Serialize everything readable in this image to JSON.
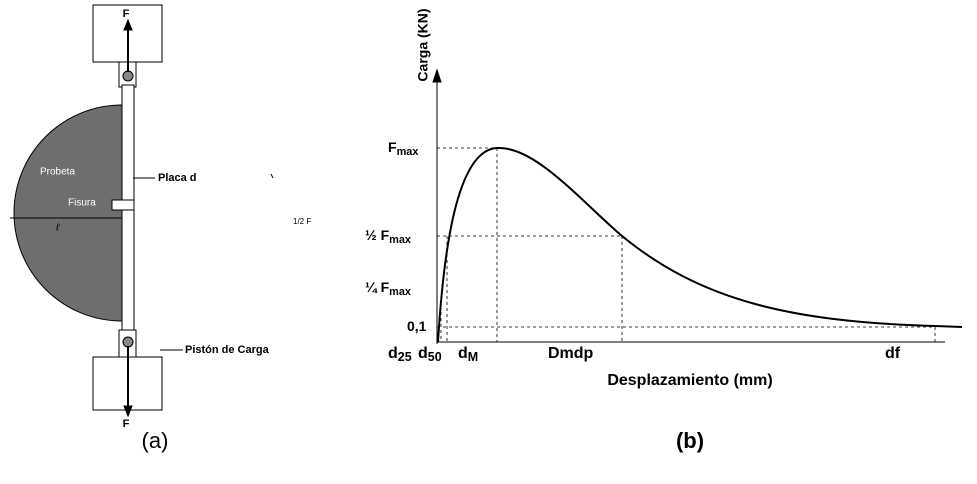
{
  "panel_a": {
    "caption": "(a)",
    "force_top": "F",
    "force_bottom": "F",
    "specimen": "Probeta",
    "plate": "Placa d",
    "crack": "Fisura",
    "length": "ℓ",
    "half_force": "1/2 F",
    "piston": "Pistón de Carga"
  },
  "panel_b": {
    "caption": "(b)",
    "y_label": "Carga (KN)",
    "x_label": "Desplazamiento (mm)",
    "y_marks": [
      {
        "main": "F",
        "sub": "max"
      },
      {
        "main": "½ F",
        "sub": "max"
      },
      {
        "main": "¼ F",
        "sub": "max"
      },
      {
        "main": "0,1"
      }
    ],
    "x_marks": [
      {
        "main": "d",
        "sub": "25"
      },
      {
        "main": "d",
        "sub": "50"
      },
      {
        "main": "d",
        "sub": "M"
      },
      {
        "main": "Dmdp"
      },
      {
        "main": "df"
      }
    ]
  }
}
